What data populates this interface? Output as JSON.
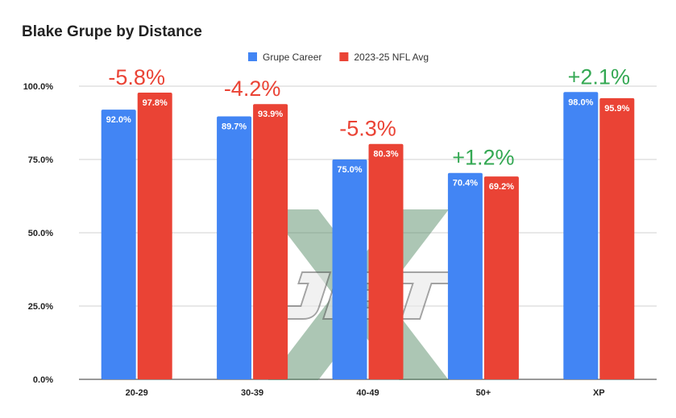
{
  "chart_data": {
    "type": "bar",
    "title": "Blake Grupe by Distance",
    "categories": [
      "20-29",
      "30-39",
      "40-49",
      "50+",
      "XP"
    ],
    "series": [
      {
        "name": "Grupe Career",
        "color": "#4285f4",
        "values": [
          92.0,
          89.7,
          75.0,
          70.4,
          98.0
        ],
        "labels": [
          "92.0%",
          "89.7%",
          "75.0%",
          "70.4%",
          "98.0%"
        ]
      },
      {
        "name": "2023-25 NFL Avg",
        "color": "#ea4335",
        "values": [
          97.8,
          93.9,
          80.3,
          69.2,
          95.9
        ],
        "labels": [
          "97.8%",
          "93.9%",
          "80.3%",
          "69.2%",
          "95.9%"
        ]
      }
    ],
    "annotations": [
      {
        "text": "-5.8%",
        "color": "#ea4335"
      },
      {
        "text": "-4.2%",
        "color": "#ea4335"
      },
      {
        "text": "-5.3%",
        "color": "#ea4335"
      },
      {
        "text": "+1.2%",
        "color": "#34a853"
      },
      {
        "text": "+2.1%",
        "color": "#34a853"
      }
    ],
    "ylim": [
      0,
      100
    ],
    "yticks": [
      {
        "value": 0,
        "label": "0.0%"
      },
      {
        "value": 25,
        "label": "25.0%"
      },
      {
        "value": 50,
        "label": "50.0%"
      },
      {
        "value": 75,
        "label": "75.0%"
      },
      {
        "value": 100,
        "label": "100.0%"
      }
    ],
    "grid": true,
    "legend_position": "top",
    "watermark": "JET X logo"
  }
}
